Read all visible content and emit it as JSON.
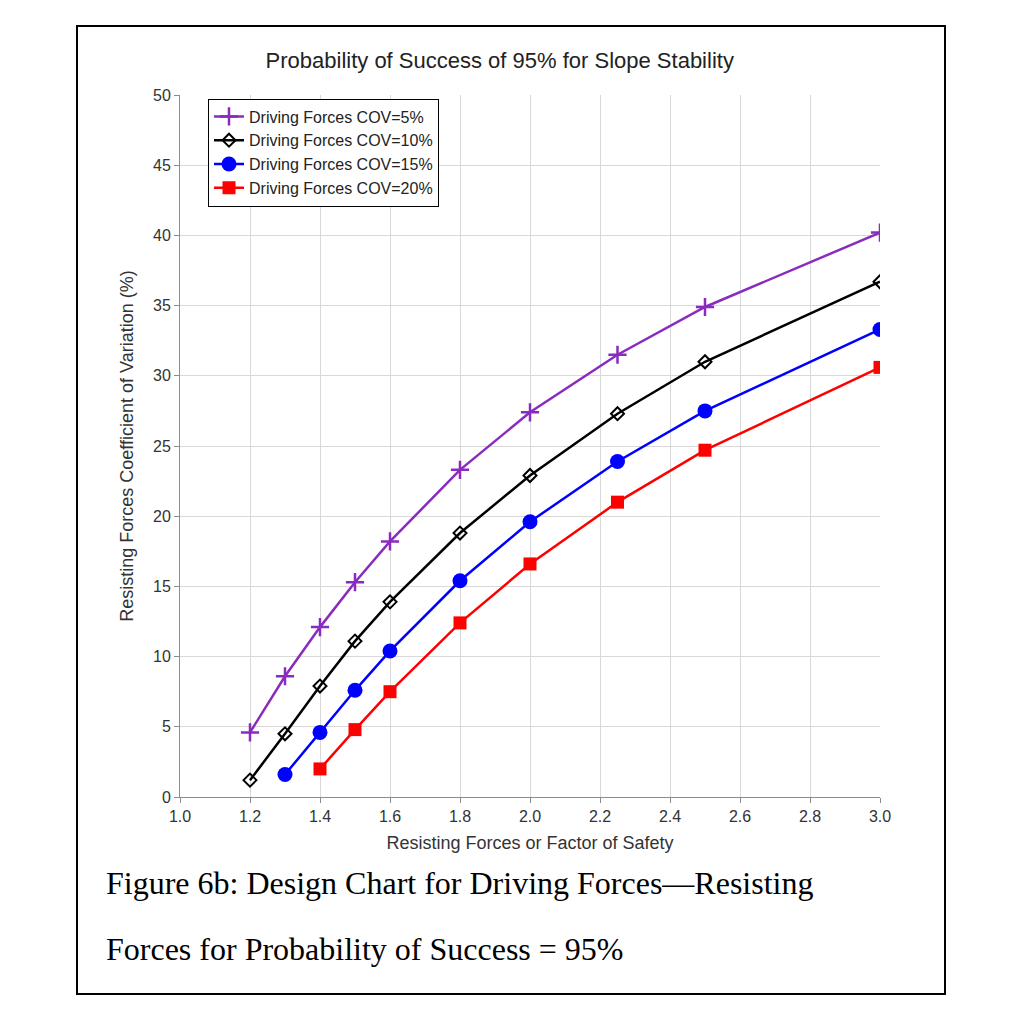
{
  "chart_data": {
    "type": "line",
    "title": "Probability of Success of 95% for Slope Stability",
    "caption": "Figure 6b: Design Chart for Driving Forces—Resisting Forces for Probability of Success = 95%",
    "x_label": "Resisting Forces or Factor of Safety",
    "y_label": "Resisting Forces Coefficient of Variation (%)",
    "xlim": [
      1,
      3
    ],
    "xticks": [
      {
        "value": 1,
        "label": "1.0"
      },
      1.2,
      1.4,
      1.6,
      1.8,
      {
        "value": 2,
        "label": "2.0"
      },
      2.2,
      2.4,
      2.6,
      2.8,
      {
        "value": 3,
        "label": "3.0"
      }
    ],
    "ylim": [
      0,
      50
    ],
    "yticks": [
      0,
      5,
      10,
      15,
      20,
      25,
      30,
      35,
      40,
      45,
      50
    ],
    "grid": true,
    "legend": "upper left",
    "series": [
      {
        "name": "Driving Forces COV=5%",
        "color": "#8a2bbf",
        "marker": "plus",
        "x": [
          1.2,
          1.3,
          1.4,
          1.5,
          1.6,
          1.8,
          2.0,
          2.25,
          2.5,
          3.0
        ],
        "values": [
          4.6,
          8.6,
          12.1,
          15.3,
          18.2,
          23.3,
          27.4,
          31.5,
          34.9,
          40.2
        ]
      },
      {
        "name": "Driving Forces COV=10%",
        "color": "#000000",
        "marker": "diamond-open",
        "x": [
          1.2,
          1.3,
          1.4,
          1.5,
          1.6,
          1.8,
          2.0,
          2.25,
          2.5,
          3.0
        ],
        "values": [
          1.2,
          4.5,
          7.9,
          11.1,
          13.9,
          18.8,
          22.9,
          27.3,
          31.0,
          36.7
        ]
      },
      {
        "name": "Driving Forces COV=15%",
        "color": "#0000ff",
        "marker": "circle",
        "x": [
          1.3,
          1.4,
          1.5,
          1.6,
          1.8,
          2.0,
          2.25,
          2.5,
          3.0
        ],
        "values": [
          1.6,
          4.6,
          7.6,
          10.4,
          15.4,
          19.6,
          23.9,
          27.5,
          33.3
        ]
      },
      {
        "name": "Driving Forces COV=20%",
        "color": "#ff0000",
        "marker": "square",
        "x": [
          1.4,
          1.5,
          1.6,
          1.8,
          2.0,
          2.25,
          2.5,
          3.0
        ],
        "values": [
          2.0,
          4.8,
          7.5,
          12.4,
          16.6,
          21.0,
          24.7,
          30.6
        ]
      }
    ]
  }
}
